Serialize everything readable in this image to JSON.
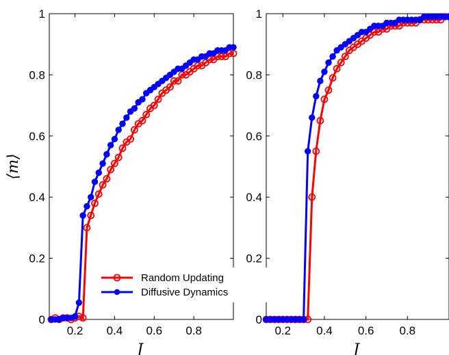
{
  "colors": {
    "random": "#ff0000",
    "diffusive": "#0000ff"
  },
  "legend": {
    "placement": "bottom-right of left panel",
    "entries": [
      {
        "label": "Random Updating",
        "color": "#ff0000",
        "marker": "open-circle"
      },
      {
        "label": "Diffusive Dynamics",
        "color": "#0000ff",
        "marker": "filled-circle"
      }
    ]
  },
  "chart_data": [
    {
      "type": "line",
      "panel": "left",
      "xlabel": "J",
      "ylabel": "⟨m⟩",
      "xlim": [
        0.07,
        1.0
      ],
      "ylim": [
        0,
        1
      ],
      "xticks": [
        0.2,
        0.4,
        0.6,
        0.8
      ],
      "xtick_labels": [
        "0.2",
        "0.4",
        "0.6",
        "0.8"
      ],
      "yticks": [
        0,
        0.2,
        0.4,
        0.6,
        0.8,
        1
      ],
      "ytick_labels": [
        "0",
        "0.2",
        "0.4",
        "0.6",
        "0.8",
        "1"
      ],
      "grid": false,
      "series": [
        {
          "name": "Random Updating",
          "color": "#ff0000",
          "marker": "open-circle",
          "x": [
            0.08,
            0.1,
            0.12,
            0.14,
            0.16,
            0.18,
            0.2,
            0.22,
            0.24,
            0.26,
            0.28,
            0.3,
            0.32,
            0.34,
            0.36,
            0.38,
            0.4,
            0.42,
            0.44,
            0.46,
            0.48,
            0.5,
            0.52,
            0.54,
            0.56,
            0.58,
            0.6,
            0.62,
            0.64,
            0.66,
            0.68,
            0.7,
            0.72,
            0.74,
            0.76,
            0.78,
            0.8,
            0.82,
            0.84,
            0.86,
            0.88,
            0.9,
            0.92,
            0.94,
            0.96,
            0.98,
            1.0
          ],
          "y": [
            0.0,
            0.005,
            0.0,
            0.005,
            0.005,
            0.0,
            0.005,
            0.01,
            0.005,
            0.3,
            0.34,
            0.38,
            0.41,
            0.44,
            0.46,
            0.49,
            0.51,
            0.53,
            0.56,
            0.58,
            0.59,
            0.62,
            0.64,
            0.65,
            0.67,
            0.69,
            0.7,
            0.72,
            0.74,
            0.75,
            0.76,
            0.78,
            0.78,
            0.8,
            0.8,
            0.81,
            0.82,
            0.83,
            0.83,
            0.84,
            0.85,
            0.85,
            0.86,
            0.86,
            0.86,
            0.87,
            0.87
          ]
        },
        {
          "name": "Diffusive Dynamics",
          "color": "#0000ff",
          "marker": "filled-circle",
          "x": [
            0.08,
            0.1,
            0.12,
            0.14,
            0.16,
            0.18,
            0.2,
            0.22,
            0.24,
            0.26,
            0.28,
            0.3,
            0.32,
            0.34,
            0.36,
            0.38,
            0.4,
            0.42,
            0.44,
            0.46,
            0.48,
            0.5,
            0.52,
            0.54,
            0.56,
            0.58,
            0.6,
            0.62,
            0.64,
            0.66,
            0.68,
            0.7,
            0.72,
            0.74,
            0.76,
            0.78,
            0.8,
            0.82,
            0.84,
            0.86,
            0.88,
            0.9,
            0.92,
            0.94,
            0.96,
            0.98,
            1.0
          ],
          "y": [
            0.0,
            0.0,
            0.0,
            0.005,
            0.005,
            0.005,
            0.01,
            0.055,
            0.34,
            0.37,
            0.4,
            0.45,
            0.48,
            0.51,
            0.54,
            0.57,
            0.59,
            0.62,
            0.64,
            0.66,
            0.68,
            0.69,
            0.71,
            0.72,
            0.74,
            0.75,
            0.76,
            0.77,
            0.78,
            0.79,
            0.8,
            0.81,
            0.82,
            0.82,
            0.83,
            0.84,
            0.85,
            0.85,
            0.86,
            0.86,
            0.87,
            0.87,
            0.88,
            0.88,
            0.88,
            0.89,
            0.89
          ]
        }
      ]
    },
    {
      "type": "line",
      "panel": "right",
      "xlabel": "J",
      "ylabel": "",
      "xlim": [
        0.12,
        1.0
      ],
      "ylim": [
        0,
        1
      ],
      "xticks": [
        0.2,
        0.4,
        0.6,
        0.8
      ],
      "xtick_labels": [
        "0.2",
        "0.4",
        "0.6",
        "0.8"
      ],
      "yticks": [
        0,
        0.2,
        0.4,
        0.6,
        0.8,
        1
      ],
      "ytick_labels": [
        "0",
        "0.2",
        "0.4",
        "0.6",
        "0.8",
        "1"
      ],
      "grid": false,
      "series": [
        {
          "name": "Random Updating",
          "color": "#ff0000",
          "marker": "open-circle",
          "x": [
            0.12,
            0.14,
            0.16,
            0.18,
            0.2,
            0.22,
            0.24,
            0.26,
            0.28,
            0.3,
            0.32,
            0.34,
            0.36,
            0.38,
            0.4,
            0.42,
            0.44,
            0.46,
            0.48,
            0.5,
            0.52,
            0.54,
            0.56,
            0.58,
            0.6,
            0.62,
            0.64,
            0.66,
            0.68,
            0.7,
            0.72,
            0.74,
            0.76,
            0.78,
            0.8,
            0.82,
            0.84,
            0.86,
            0.88,
            0.9,
            0.92,
            0.94,
            0.96,
            0.98,
            1.0
          ],
          "y": [
            0.0,
            0.0,
            0.0,
            0.0,
            0.0,
            0.0,
            0.0,
            0.0,
            0.0,
            0.0,
            0.0,
            0.4,
            0.55,
            0.65,
            0.72,
            0.75,
            0.79,
            0.82,
            0.84,
            0.86,
            0.88,
            0.89,
            0.9,
            0.91,
            0.92,
            0.93,
            0.94,
            0.94,
            0.95,
            0.95,
            0.96,
            0.96,
            0.96,
            0.97,
            0.97,
            0.97,
            0.97,
            0.98,
            0.98,
            0.98,
            0.98,
            0.98,
            0.98,
            0.99,
            0.99
          ]
        },
        {
          "name": "Diffusive Dynamics",
          "color": "#0000ff",
          "marker": "filled-circle",
          "x": [
            0.12,
            0.14,
            0.16,
            0.18,
            0.2,
            0.22,
            0.24,
            0.26,
            0.28,
            0.3,
            0.32,
            0.34,
            0.36,
            0.38,
            0.4,
            0.42,
            0.44,
            0.46,
            0.48,
            0.5,
            0.52,
            0.54,
            0.56,
            0.58,
            0.6,
            0.62,
            0.64,
            0.66,
            0.68,
            0.7,
            0.72,
            0.74,
            0.76,
            0.78,
            0.8,
            0.82,
            0.84,
            0.86,
            0.88,
            0.9,
            0.92,
            0.94,
            0.96,
            0.98,
            1.0
          ],
          "y": [
            0.0,
            0.0,
            0.0,
            0.0,
            0.0,
            0.0,
            0.0,
            0.0,
            0.0,
            0.0,
            0.55,
            0.66,
            0.73,
            0.78,
            0.81,
            0.84,
            0.86,
            0.88,
            0.89,
            0.9,
            0.91,
            0.92,
            0.93,
            0.94,
            0.94,
            0.95,
            0.96,
            0.96,
            0.96,
            0.97,
            0.97,
            0.97,
            0.98,
            0.98,
            0.98,
            0.98,
            0.98,
            0.98,
            0.99,
            0.99,
            0.99,
            0.99,
            0.99,
            0.99,
            0.99
          ]
        }
      ]
    }
  ]
}
